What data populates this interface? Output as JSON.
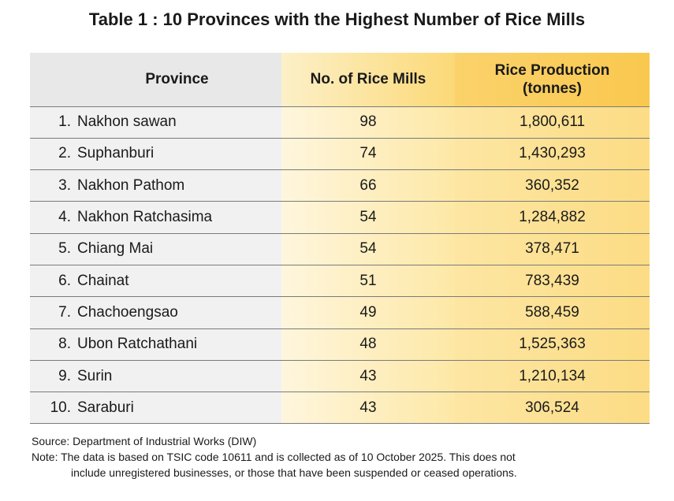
{
  "title": "Table 1 : 10 Provinces with the Highest Number of Rice Mills",
  "headers": {
    "province": "Province",
    "mills": "No. of Rice Mills",
    "production_line1": "Rice Production",
    "production_line2": "(tonnes)"
  },
  "rows": [
    {
      "rank": "1.",
      "province": "Nakhon sawan",
      "mills": "98",
      "production": "1,800,611"
    },
    {
      "rank": "2.",
      "province": "Suphanburi",
      "mills": "74",
      "production": "1,430,293"
    },
    {
      "rank": "3.",
      "province": "Nakhon Pathom",
      "mills": "66",
      "production": "360,352"
    },
    {
      "rank": "4.",
      "province": "Nakhon Ratchasima",
      "mills": "54",
      "production": "1,284,882"
    },
    {
      "rank": "5.",
      "province": "Chiang Mai",
      "mills": "54",
      "production": "378,471"
    },
    {
      "rank": "6.",
      "province": "Chainat",
      "mills": "51",
      "production": "783,439"
    },
    {
      "rank": "7.",
      "province": "Chachoengsao",
      "mills": "49",
      "production": "588,459"
    },
    {
      "rank": "8.",
      "province": "Ubon Ratchathani",
      "mills": "48",
      "production": "1,525,363"
    },
    {
      "rank": "9.",
      "province": "Surin",
      "mills": "43",
      "production": "1,210,134"
    },
    {
      "rank": "10.",
      "province": "Saraburi",
      "mills": "43",
      "production": "306,524"
    }
  ],
  "source": "Source: Department of Industrial Works (DIW)",
  "note_line1": "Note: The data is based on TSIC code 10611 and is collected as of 10 October 2025. This does not",
  "note_line2": "include unregistered businesses, or those that have been suspended or ceased operations."
}
